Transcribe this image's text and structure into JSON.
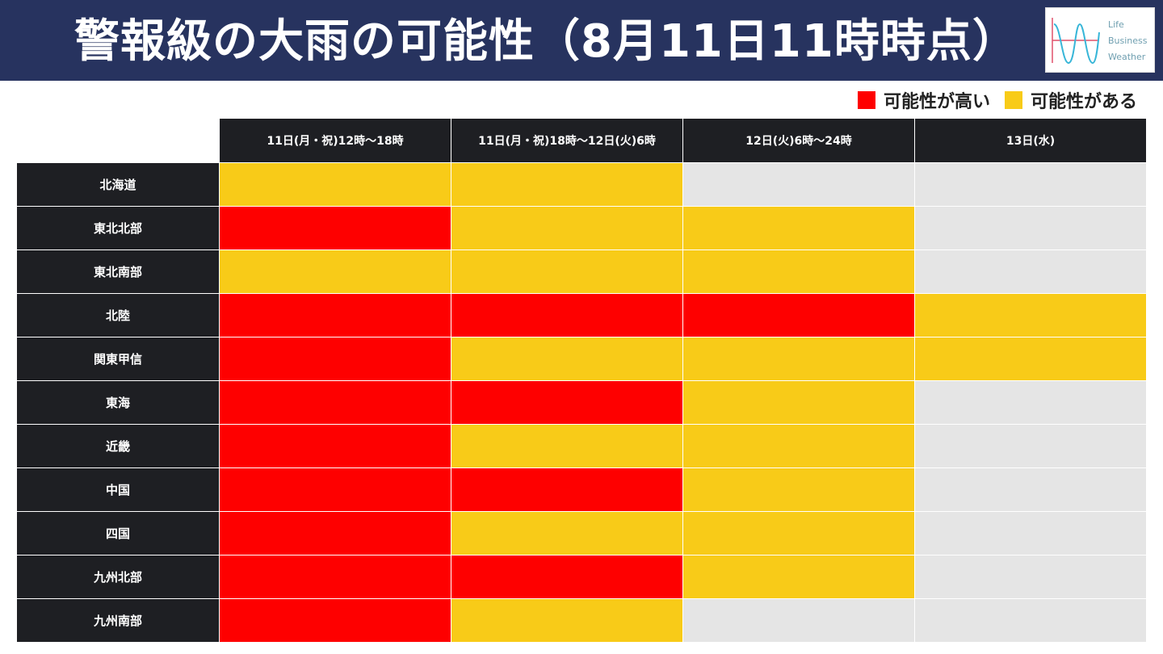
{
  "title": "警報級の大雨の可能性（8月11日11時時点）",
  "logo": {
    "lines": [
      "Life",
      "Business",
      "Weather"
    ]
  },
  "legend": [
    {
      "label": "可能性が高い",
      "color": "#fe0000"
    },
    {
      "label": "可能性がある",
      "color": "#f8cb18"
    }
  ],
  "colors": {
    "high": "#fe0000",
    "maybe": "#f8cb18",
    "none": "#e5e5e5"
  },
  "table": {
    "columns": [
      "11日(月・祝)12時〜18時",
      "11日(月・祝)18時〜12日(火)6時",
      "12日(火)6時〜24時",
      "13日(水)"
    ],
    "rows": [
      {
        "region": "北海道",
        "levels": [
          "maybe",
          "maybe",
          "none",
          "none"
        ]
      },
      {
        "region": "東北北部",
        "levels": [
          "high",
          "maybe",
          "maybe",
          "none"
        ]
      },
      {
        "region": "東北南部",
        "levels": [
          "maybe",
          "maybe",
          "maybe",
          "none"
        ]
      },
      {
        "region": "北陸",
        "levels": [
          "high",
          "high",
          "high",
          "maybe"
        ]
      },
      {
        "region": "関東甲信",
        "levels": [
          "high",
          "maybe",
          "maybe",
          "maybe"
        ]
      },
      {
        "region": "東海",
        "levels": [
          "high",
          "high",
          "maybe",
          "none"
        ]
      },
      {
        "region": "近畿",
        "levels": [
          "high",
          "maybe",
          "maybe",
          "none"
        ]
      },
      {
        "region": "中国",
        "levels": [
          "high",
          "high",
          "maybe",
          "none"
        ]
      },
      {
        "region": "四国",
        "levels": [
          "high",
          "maybe",
          "maybe",
          "none"
        ]
      },
      {
        "region": "九州北部",
        "levels": [
          "high",
          "high",
          "maybe",
          "none"
        ]
      },
      {
        "region": "九州南部",
        "levels": [
          "high",
          "maybe",
          "none",
          "none"
        ]
      }
    ]
  }
}
